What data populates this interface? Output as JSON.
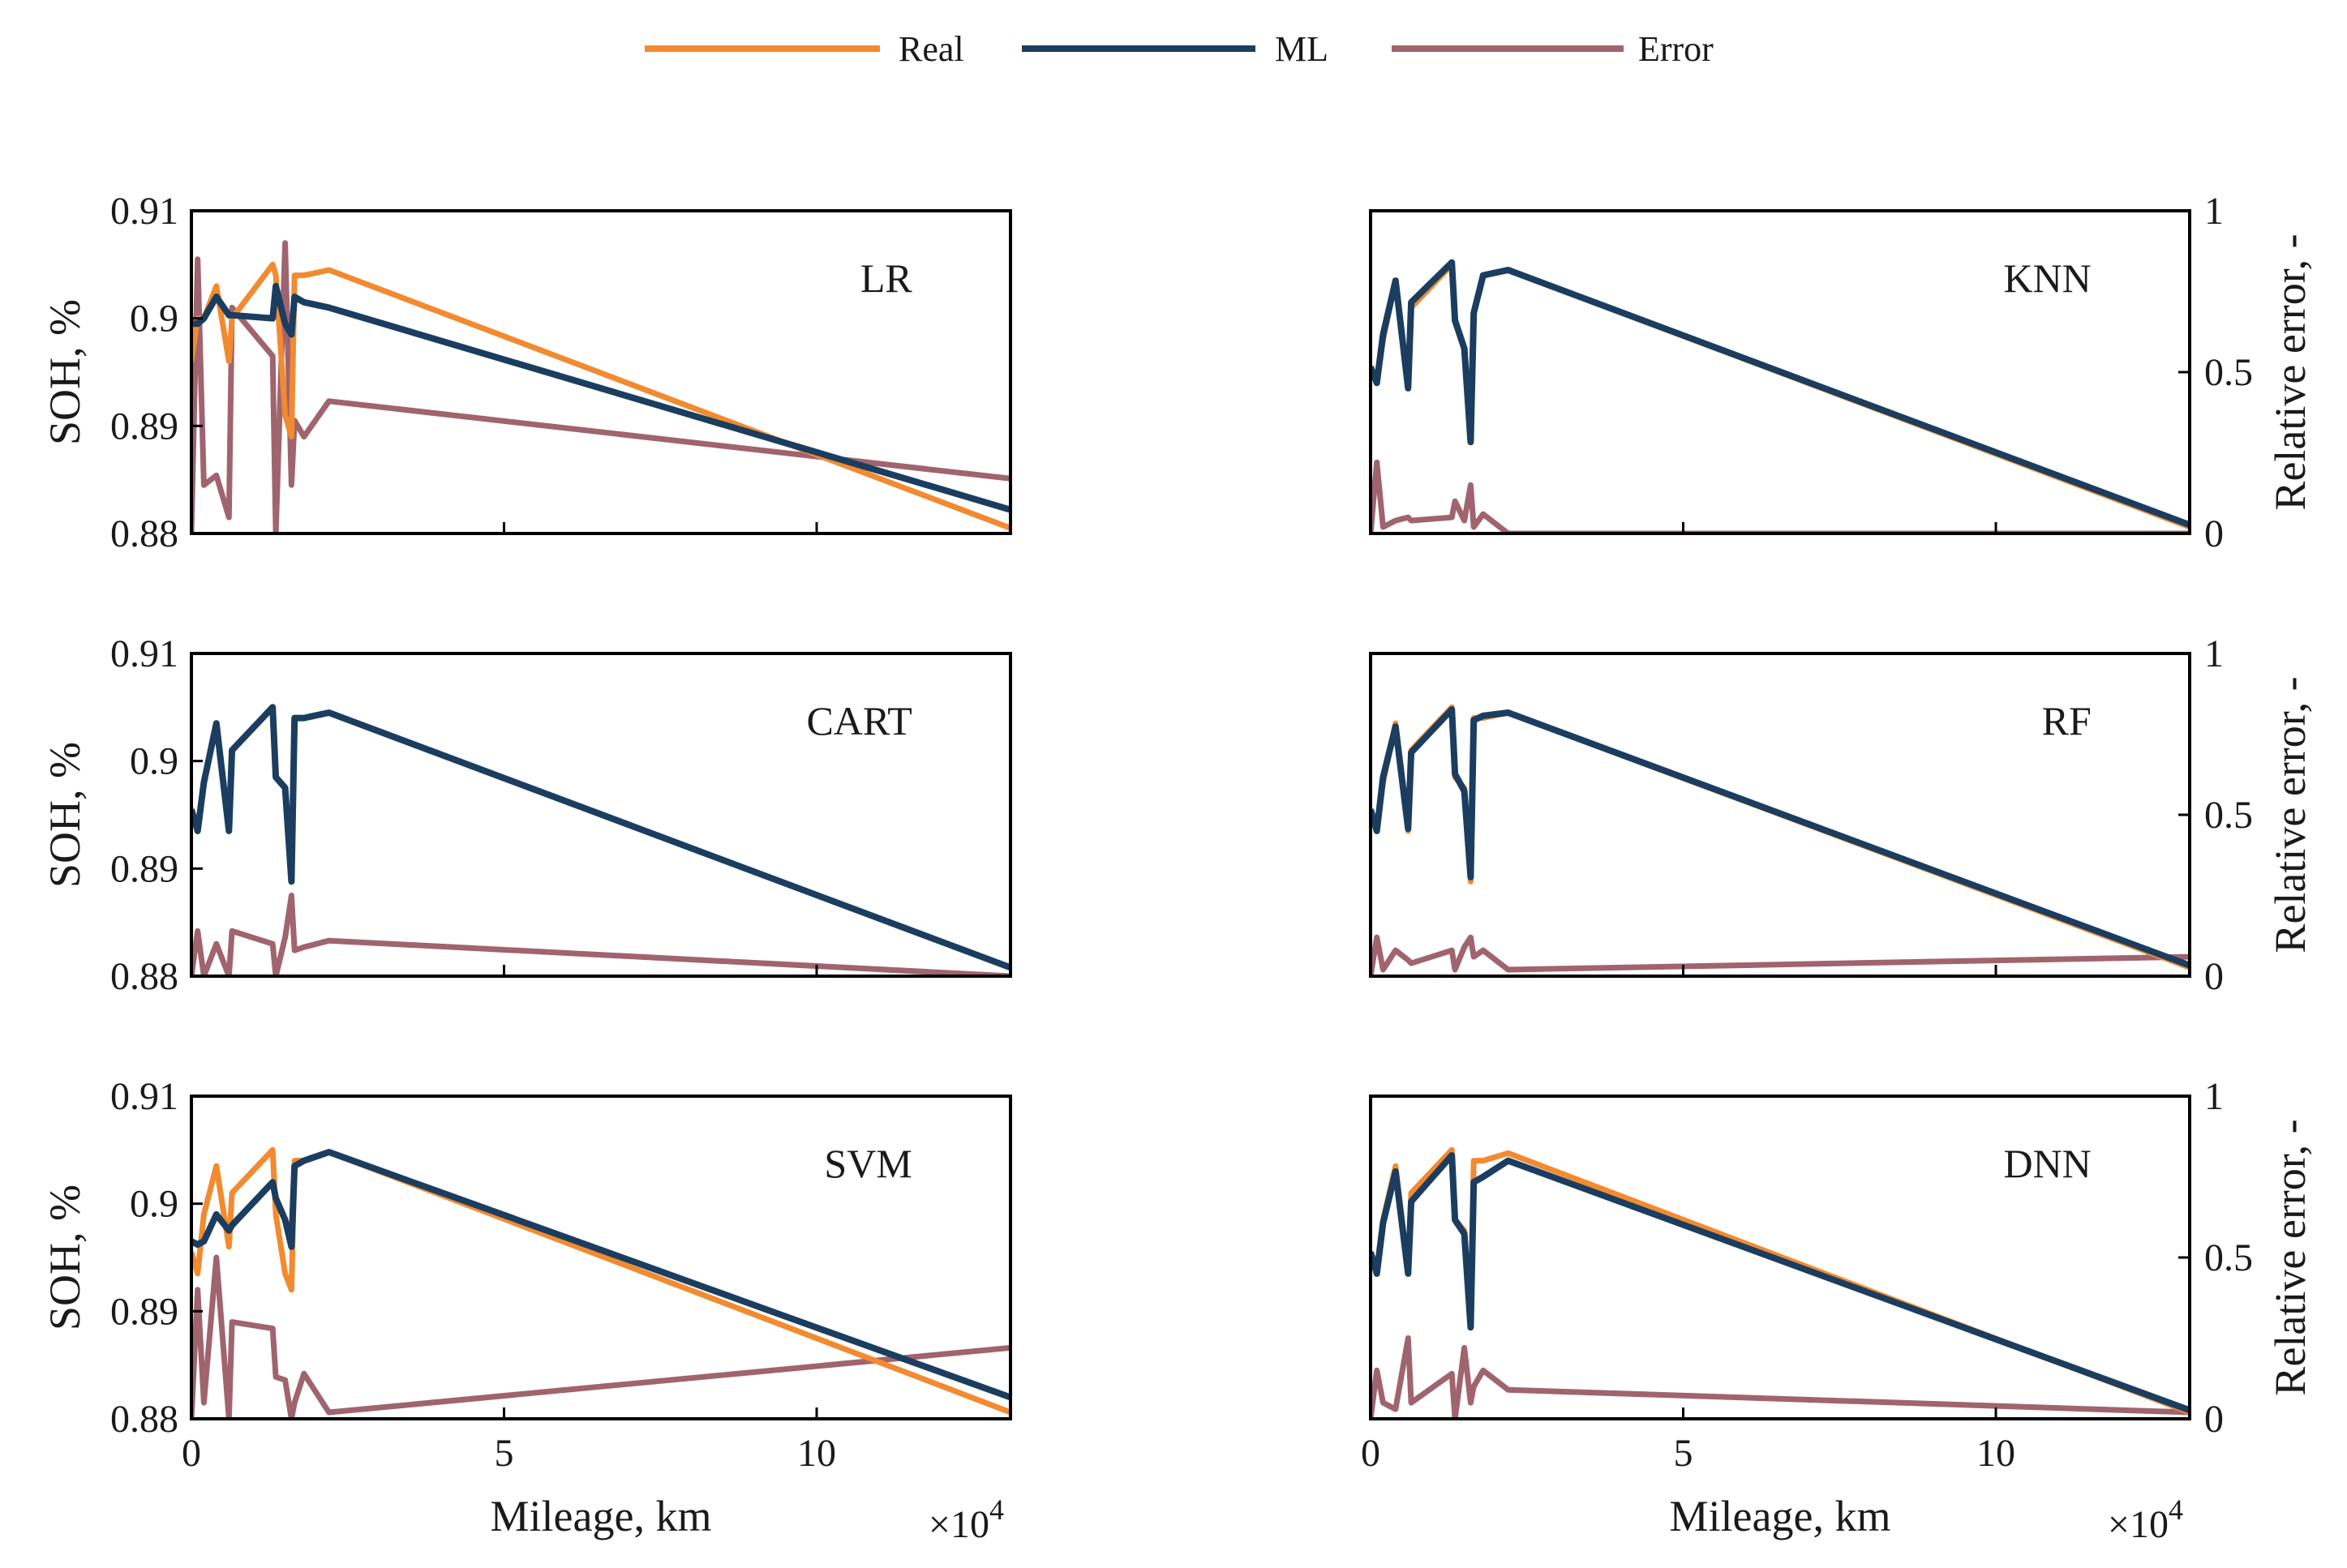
{
  "legend": [
    {
      "key": "real",
      "label": "Real",
      "color": "#F28A30"
    },
    {
      "key": "ml",
      "label": "ML",
      "color": "#1B3D5F"
    },
    {
      "key": "error",
      "label": "Error",
      "color": "#A0646F"
    }
  ],
  "axes": {
    "ylabel_left": "SOH, %",
    "ylabel_right": "Relative error, -",
    "xlabel": "Mileage, km",
    "x_multiplier": "×10",
    "x_multiplier_exp": "4",
    "xlim": [
      0,
      13.1
    ],
    "ylim_left": [
      0.88,
      0.91
    ],
    "ylim_right": [
      0,
      1
    ],
    "xticks": [
      "0",
      "5",
      "10"
    ],
    "xtick_values": [
      0,
      5,
      10
    ],
    "yticks_left": [
      "0.88",
      "0.89",
      "0.9",
      "0.91"
    ],
    "ytick_values_left": [
      0.88,
      0.89,
      0.9,
      0.91
    ],
    "yticks_right": [
      "0",
      "0.5",
      "1"
    ],
    "ytick_values_right": [
      0,
      0.5,
      1
    ]
  },
  "chart_data": [
    {
      "type": "line",
      "name": "LR",
      "x": [
        0,
        0.1,
        0.2,
        0.4,
        0.6,
        0.65,
        1.3,
        1.35,
        1.5,
        1.6,
        1.65,
        1.8,
        2.2,
        13.1
      ],
      "series": [
        {
          "name": "Real",
          "values": [
            0.896,
            0.9,
            0.9,
            0.903,
            0.896,
            0.9,
            0.905,
            0.904,
            0.891,
            0.889,
            0.904,
            0.904,
            0.9045,
            0.8805
          ]
        },
        {
          "name": "ML",
          "values": [
            0.8995,
            0.8995,
            0.9,
            0.902,
            0.9003,
            0.9003,
            0.9,
            0.903,
            0.8995,
            0.8985,
            0.902,
            0.9015,
            0.901,
            0.8822
          ]
        },
        {
          "name": "Error",
          "axis": "right",
          "values": [
            0.0,
            0.85,
            0.15,
            0.18,
            0.05,
            0.7,
            0.55,
            0.0,
            0.9,
            0.15,
            0.35,
            0.3,
            0.41,
            0.17
          ]
        }
      ]
    },
    {
      "type": "line",
      "name": "KNN",
      "x": [
        0,
        0.1,
        0.2,
        0.4,
        0.6,
        0.65,
        1.3,
        1.35,
        1.5,
        1.6,
        1.65,
        1.8,
        2.2,
        13.1
      ],
      "series": [
        {
          "name": "Real",
          "values": [
            0.8955,
            0.894,
            0.898,
            0.9035,
            0.8935,
            0.901,
            0.905,
            0.8998,
            0.8972,
            0.8885,
            0.9005,
            0.904,
            0.9045,
            0.8806
          ]
        },
        {
          "name": "ML",
          "values": [
            0.8955,
            0.894,
            0.8985,
            0.9035,
            0.8935,
            0.9015,
            0.9052,
            0.8998,
            0.8972,
            0.8885,
            0.9005,
            0.904,
            0.9045,
            0.8808
          ]
        },
        {
          "name": "Error",
          "axis": "right",
          "values": [
            0.0,
            0.22,
            0.02,
            0.04,
            0.05,
            0.04,
            0.05,
            0.1,
            0.04,
            0.15,
            0.02,
            0.06,
            0.0,
            0.0
          ]
        }
      ]
    },
    {
      "type": "line",
      "name": "CART",
      "x": [
        0,
        0.1,
        0.2,
        0.4,
        0.6,
        0.65,
        1.3,
        1.35,
        1.5,
        1.6,
        1.65,
        1.8,
        2.2,
        13.1
      ],
      "series": [
        {
          "name": "Real",
          "values": [
            0.8955,
            0.8935,
            0.898,
            0.9035,
            0.8935,
            0.901,
            0.905,
            0.8985,
            0.8975,
            0.8888,
            0.904,
            0.904,
            0.9045,
            0.8808
          ]
        },
        {
          "name": "ML",
          "values": [
            0.8955,
            0.8935,
            0.898,
            0.9035,
            0.8935,
            0.901,
            0.905,
            0.8985,
            0.8975,
            0.8888,
            0.904,
            0.904,
            0.9045,
            0.8808
          ]
        },
        {
          "name": "Error",
          "axis": "right",
          "values": [
            0.0,
            0.14,
            0.0,
            0.1,
            0.0,
            0.14,
            0.1,
            0.0,
            0.12,
            0.25,
            0.08,
            0.09,
            0.11,
            0.0
          ]
        }
      ]
    },
    {
      "type": "line",
      "name": "RF",
      "x": [
        0,
        0.1,
        0.2,
        0.4,
        0.6,
        0.65,
        1.3,
        1.35,
        1.5,
        1.6,
        1.65,
        1.8,
        2.2,
        13.1
      ],
      "series": [
        {
          "name": "Real",
          "values": [
            0.8955,
            0.8935,
            0.898,
            0.9035,
            0.8935,
            0.901,
            0.905,
            0.8985,
            0.8975,
            0.8888,
            0.904,
            0.904,
            0.9045,
            0.8808
          ]
        },
        {
          "name": "ML",
          "values": [
            0.8955,
            0.8935,
            0.8985,
            0.9032,
            0.8937,
            0.9008,
            0.9048,
            0.8988,
            0.8972,
            0.8892,
            0.9038,
            0.9042,
            0.9045,
            0.881
          ]
        },
        {
          "name": "Error",
          "axis": "right",
          "values": [
            0.0,
            0.12,
            0.02,
            0.08,
            0.05,
            0.04,
            0.08,
            0.02,
            0.09,
            0.12,
            0.06,
            0.08,
            0.02,
            0.06
          ]
        }
      ]
    },
    {
      "type": "line",
      "name": "SVM",
      "x": [
        0,
        0.1,
        0.2,
        0.4,
        0.6,
        0.65,
        1.3,
        1.35,
        1.5,
        1.6,
        1.65,
        1.8,
        2.2,
        13.1
      ],
      "series": [
        {
          "name": "Real",
          "values": [
            0.8955,
            0.8935,
            0.899,
            0.9035,
            0.896,
            0.901,
            0.905,
            0.899,
            0.8935,
            0.892,
            0.904,
            0.904,
            0.9048,
            0.8806
          ]
        },
        {
          "name": "ML",
          "values": [
            0.8965,
            0.8962,
            0.8965,
            0.899,
            0.8975,
            0.898,
            0.902,
            0.9005,
            0.8985,
            0.896,
            0.9035,
            0.904,
            0.9048,
            0.882
          ]
        },
        {
          "name": "Error",
          "axis": "right",
          "values": [
            0.0,
            0.4,
            0.05,
            0.5,
            0.0,
            0.3,
            0.28,
            0.13,
            0.12,
            0.0,
            0.05,
            0.14,
            0.02,
            0.22
          ]
        }
      ]
    },
    {
      "type": "line",
      "name": "DNN",
      "x": [
        0,
        0.1,
        0.2,
        0.4,
        0.6,
        0.65,
        1.3,
        1.35,
        1.5,
        1.6,
        1.65,
        1.8,
        2.2,
        13.1
      ],
      "series": [
        {
          "name": "Real",
          "values": [
            0.8955,
            0.894,
            0.8985,
            0.9035,
            0.8935,
            0.901,
            0.905,
            0.8985,
            0.8975,
            0.8888,
            0.904,
            0.904,
            0.9047,
            0.8806
          ]
        },
        {
          "name": "ML",
          "values": [
            0.8955,
            0.8935,
            0.8982,
            0.903,
            0.8935,
            0.9002,
            0.9045,
            0.8985,
            0.8972,
            0.8885,
            0.902,
            0.9025,
            0.904,
            0.8808
          ]
        },
        {
          "name": "Error",
          "axis": "right",
          "values": [
            0.0,
            0.15,
            0.05,
            0.03,
            0.25,
            0.05,
            0.14,
            0.0,
            0.22,
            0.05,
            0.1,
            0.15,
            0.09,
            0.02
          ]
        }
      ]
    }
  ]
}
